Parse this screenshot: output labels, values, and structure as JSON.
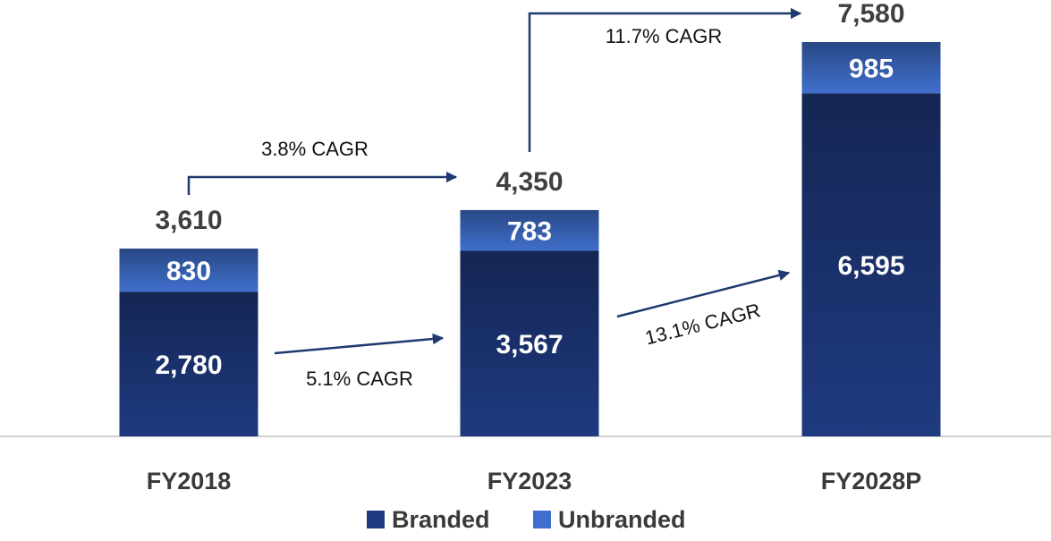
{
  "chart_data": {
    "type": "stacked_bar",
    "categories": [
      "FY2018",
      "FY2023",
      "FY2028P"
    ],
    "series": [
      {
        "name": "Branded",
        "color": "#1f3a80",
        "values": [
          2780,
          3567,
          6595
        ],
        "value_labels": [
          "2,780",
          "3,567",
          "6,595"
        ]
      },
      {
        "name": "Unbranded",
        "color": "#3f6fcc",
        "values": [
          830,
          783,
          985
        ],
        "value_labels": [
          "830",
          "783",
          "985"
        ]
      }
    ],
    "totals": [
      3610,
      4350,
      7580
    ],
    "total_labels": [
      "3,610",
      "4,350",
      "7,580"
    ],
    "annotations": [
      "3.8% CAGR",
      "11.7% CAGR",
      "5.1% CAGR",
      "13.1% CAGR"
    ],
    "legend": "bottom"
  }
}
